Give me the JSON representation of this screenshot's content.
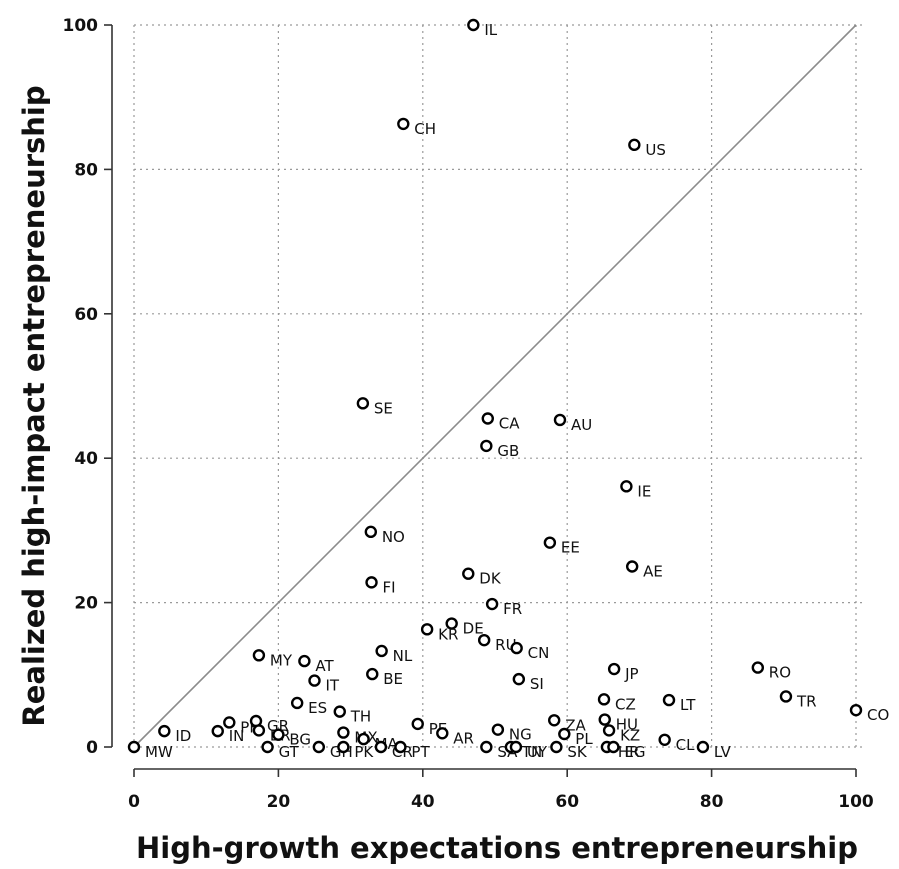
{
  "chart_data": {
    "type": "scatter",
    "xlabel": "High-growth expectations entrepreneurship",
    "ylabel": "Realized high-impact entrepreneurship",
    "xlim": [
      0,
      100
    ],
    "ylim": [
      0,
      100
    ],
    "xticks": [
      "0",
      "20",
      "40",
      "60",
      "80",
      "100"
    ],
    "yticks": [
      "0",
      "20",
      "40",
      "60",
      "80",
      "100"
    ],
    "grid": true,
    "reference_line": "y = x",
    "points": [
      {
        "label": "IL",
        "x": 47.0,
        "y": 100.0
      },
      {
        "label": "CH",
        "x": 37.3,
        "y": 86.3
      },
      {
        "label": "US",
        "x": 69.3,
        "y": 83.4
      },
      {
        "label": "SE",
        "x": 31.7,
        "y": 47.6
      },
      {
        "label": "CA",
        "x": 49.0,
        "y": 45.5
      },
      {
        "label": "AU",
        "x": 59.0,
        "y": 45.3
      },
      {
        "label": "GB",
        "x": 48.8,
        "y": 41.7
      },
      {
        "label": "IE",
        "x": 68.2,
        "y": 36.1
      },
      {
        "label": "NO",
        "x": 32.8,
        "y": 29.8
      },
      {
        "label": "EE",
        "x": 57.6,
        "y": 28.3
      },
      {
        "label": "AE",
        "x": 69.0,
        "y": 25.0
      },
      {
        "label": "DK",
        "x": 46.3,
        "y": 24.0
      },
      {
        "label": "FI",
        "x": 32.9,
        "y": 22.8
      },
      {
        "label": "FR",
        "x": 49.6,
        "y": 19.8
      },
      {
        "label": "DE",
        "x": 44.0,
        "y": 17.1
      },
      {
        "label": "KR",
        "x": 40.6,
        "y": 16.3
      },
      {
        "label": "RU",
        "x": 48.5,
        "y": 14.8
      },
      {
        "label": "CN",
        "x": 53.0,
        "y": 13.7
      },
      {
        "label": "NL",
        "x": 34.3,
        "y": 13.3
      },
      {
        "label": "MY",
        "x": 17.3,
        "y": 12.7
      },
      {
        "label": "AT",
        "x": 23.6,
        "y": 11.9
      },
      {
        "label": "RO",
        "x": 86.4,
        "y": 11.0
      },
      {
        "label": "JP",
        "x": 66.5,
        "y": 10.8
      },
      {
        "label": "BE",
        "x": 33.0,
        "y": 10.1
      },
      {
        "label": "SI",
        "x": 53.3,
        "y": 9.4
      },
      {
        "label": "IT",
        "x": 25.0,
        "y": 9.2
      },
      {
        "label": "TR",
        "x": 90.3,
        "y": 7.0
      },
      {
        "label": "CZ",
        "x": 65.1,
        "y": 6.6
      },
      {
        "label": "LT",
        "x": 74.1,
        "y": 6.5
      },
      {
        "label": "ES",
        "x": 22.6,
        "y": 6.1
      },
      {
        "label": "CO",
        "x": 100.0,
        "y": 5.1
      },
      {
        "label": "TH",
        "x": 28.5,
        "y": 4.9
      },
      {
        "label": "ZA",
        "x": 58.2,
        "y": 3.7
      },
      {
        "label": "HU",
        "x": 65.2,
        "y": 3.8
      },
      {
        "label": "PH",
        "x": 13.2,
        "y": 3.4
      },
      {
        "label": "GR",
        "x": 16.9,
        "y": 3.6
      },
      {
        "label": "PE",
        "x": 39.3,
        "y": 3.2
      },
      {
        "label": "NG",
        "x": 50.4,
        "y": 2.4
      },
      {
        "label": "KZ",
        "x": 65.8,
        "y": 2.3
      },
      {
        "label": "ID",
        "x": 4.2,
        "y": 2.2
      },
      {
        "label": "IN",
        "x": 11.6,
        "y": 2.2
      },
      {
        "label": "BR",
        "x": 17.3,
        "y": 2.3
      },
      {
        "label": "MX",
        "x": 29.0,
        "y": 2.0
      },
      {
        "label": "AR",
        "x": 42.7,
        "y": 1.9
      },
      {
        "label": "PL",
        "x": 59.6,
        "y": 1.8
      },
      {
        "label": "BG",
        "x": 20.0,
        "y": 1.7
      },
      {
        "label": "MA",
        "x": 31.8,
        "y": 1.1
      },
      {
        "label": "CL",
        "x": 73.5,
        "y": 1.0
      },
      {
        "label": "MW",
        "x": 0.0,
        "y": 0.0
      },
      {
        "label": "GT",
        "x": 18.5,
        "y": 0.0
      },
      {
        "label": "GH",
        "x": 25.6,
        "y": 0.0
      },
      {
        "label": "PK",
        "x": 29.0,
        "y": 0.0
      },
      {
        "label": "CR",
        "x": 34.2,
        "y": 0.0
      },
      {
        "label": "PT",
        "x": 36.9,
        "y": 0.0
      },
      {
        "label": "SA",
        "x": 48.8,
        "y": 0.0
      },
      {
        "label": "TN",
        "x": 52.2,
        "y": 0.0
      },
      {
        "label": "UY",
        "x": 52.9,
        "y": 0.0
      },
      {
        "label": "SK",
        "x": 58.5,
        "y": 0.0
      },
      {
        "label": "HR",
        "x": 65.5,
        "y": 0.0
      },
      {
        "label": "EG",
        "x": 66.4,
        "y": 0.0
      },
      {
        "label": "LV",
        "x": 78.8,
        "y": 0.0
      }
    ]
  }
}
